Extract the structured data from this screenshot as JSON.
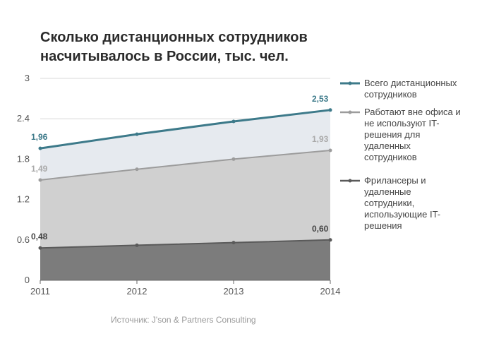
{
  "title_line1": "Сколько дистанционных сотрудников",
  "title_line2": "насчитывалось в России, тыс. чел.",
  "source": "Источник: J'son & Partners Consulting",
  "colors": {
    "total": "#3d7a8a",
    "office": "#9c9c9c",
    "freelance": "#5a5a5a",
    "fill_total": "#e6eaef",
    "fill_office": "#d0d0d0",
    "fill_freelance": "#7c7c7c"
  },
  "chart_data": {
    "type": "area",
    "title": "Сколько дистанционных сотрудников насчитывалось в России, тыс. чел.",
    "categories": [
      "2011",
      "2012",
      "2013",
      "2014"
    ],
    "ylim": [
      0,
      3
    ],
    "yticks": [
      "0",
      "0.6",
      "1.2",
      "1.8",
      "2.4",
      "3"
    ],
    "grid": true,
    "legend_position": "right",
    "series": [
      {
        "name": "Всего дистанционных сотрудников",
        "legend_lines": [
          "Всего дистанционных",
          "сотрудников"
        ],
        "values": [
          1.96,
          2.17,
          2.36,
          2.53
        ],
        "labels": [
          "1,96",
          "",
          "",
          "2,53"
        ]
      },
      {
        "name": "Работают вне офиса и не используют IT-решения для удаленных сотрудников",
        "legend_lines": [
          "Работают вне офиса и",
          "не используют IT-",
          "решения для",
          "удаленных",
          "сотрудников"
        ],
        "values": [
          1.49,
          1.65,
          1.8,
          1.93
        ],
        "labels": [
          "1,49",
          "",
          "",
          "1,93"
        ]
      },
      {
        "name": "Фрилансеры и удаленные сотрудники, использующие IT-решения",
        "legend_lines": [
          "Фрилансеры и",
          "удаленные",
          "сотрудники,",
          "использующие IT-",
          "решения"
        ],
        "values": [
          0.48,
          0.52,
          0.56,
          0.6
        ],
        "labels": [
          "0,48",
          "",
          "",
          "0,60"
        ]
      }
    ]
  }
}
